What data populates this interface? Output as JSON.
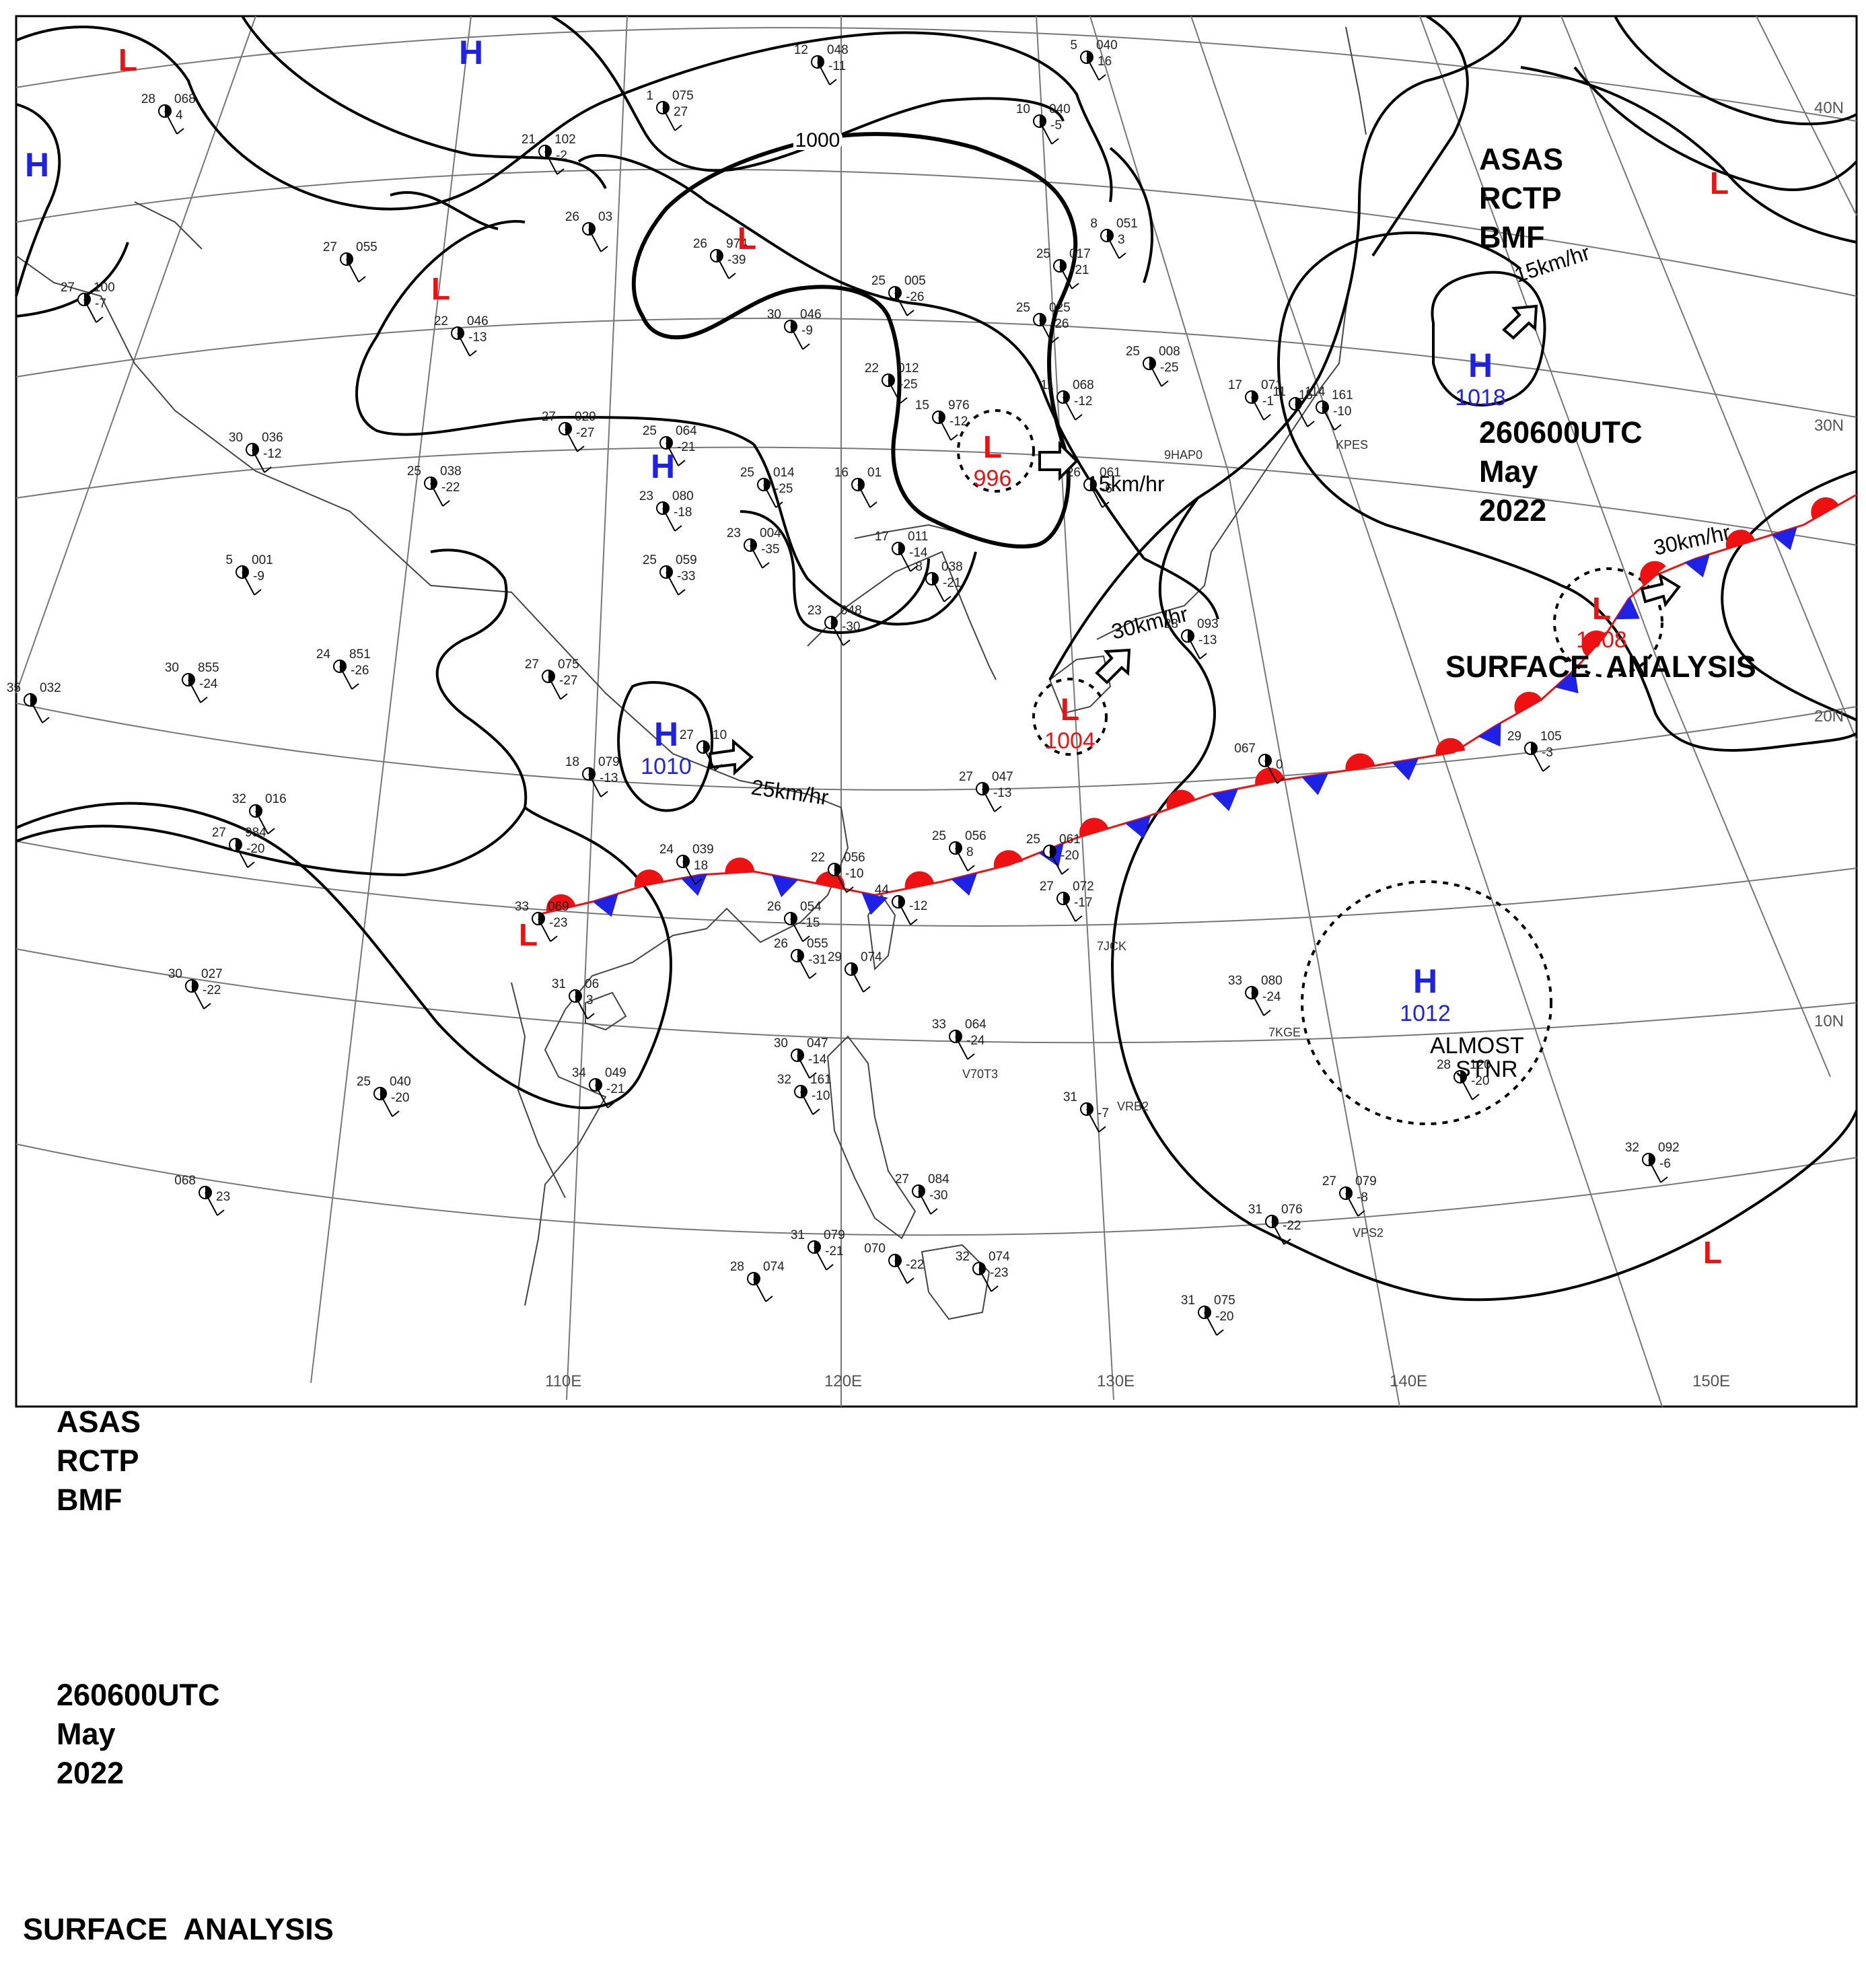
{
  "header": {
    "line1": [
      "ASAS",
      "RCTP",
      "BMF"
    ],
    "line2": [
      "260600UTC",
      "May",
      "2022"
    ],
    "line3": "SURFACE  ANALYSIS"
  },
  "colors": {
    "high": "#1e22e6",
    "low": "#ee1111",
    "isobar": "#000000",
    "grid": "#707070",
    "coast": "#505050"
  },
  "lon_labels": [
    "110E",
    "120E",
    "130E",
    "140E",
    "150E"
  ],
  "lat_labels": [
    "40N",
    "30N",
    "20N",
    "10N"
  ],
  "isobar_label": "1000",
  "pressure_systems": [
    {
      "type": "L",
      "value": ""
    },
    {
      "type": "H",
      "value": ""
    },
    {
      "type": "H",
      "value": ""
    },
    {
      "type": "L",
      "value": ""
    },
    {
      "type": "L",
      "value": ""
    },
    {
      "type": "H",
      "value": ""
    },
    {
      "type": "L",
      "value": "996"
    },
    {
      "type": "H",
      "value": "1010"
    },
    {
      "type": "L",
      "value": "1004"
    },
    {
      "type": "L",
      "value": ""
    },
    {
      "type": "H",
      "value": "1018"
    },
    {
      "type": "L",
      "value": "1008"
    },
    {
      "type": "L",
      "value": ""
    },
    {
      "type": "H",
      "value": "1012"
    },
    {
      "type": "L",
      "value": ""
    }
  ],
  "motion_labels": [
    "15km/hr",
    "15km/hr",
    "30km/hr",
    "30km/hr",
    "25km/hr"
  ],
  "almost_stnr": [
    "ALMOST",
    "STNR"
  ],
  "station_plots": [
    {
      "t": "12",
      "p": "048",
      "d": "-11"
    },
    {
      "t": "5",
      "p": "040",
      "d": "16"
    },
    {
      "t": "28",
      "p": "068",
      "d": "4"
    },
    {
      "t": "1",
      "p": "075",
      "d": "27"
    },
    {
      "t": "21",
      "p": "102",
      "d": "-2"
    },
    {
      "t": "10",
      "p": "040",
      "d": "-5"
    },
    {
      "t": "26",
      "p": "03",
      "d": ""
    },
    {
      "t": "26",
      "p": "974",
      "d": "-39"
    },
    {
      "t": "27",
      "p": "055",
      "d": ""
    },
    {
      "t": "25",
      "p": "017",
      "d": "-21"
    },
    {
      "t": "8",
      "p": "051",
      "d": "3"
    },
    {
      "t": "25",
      "p": "005",
      "d": "-26"
    },
    {
      "t": "27",
      "p": "100",
      "d": "-7"
    },
    {
      "t": "22",
      "p": "046",
      "d": "-13"
    },
    {
      "t": "30",
      "p": "046",
      "d": "-9"
    },
    {
      "t": "25",
      "p": "025",
      "d": "-26"
    },
    {
      "t": "25",
      "p": "008",
      "d": "-25"
    },
    {
      "t": "22",
      "p": "012",
      "d": "-25"
    },
    {
      "t": "17",
      "p": "071",
      "d": "-1"
    },
    {
      "t": "15",
      "p": "976",
      "d": "-12"
    },
    {
      "t": "11",
      "p": "068",
      "d": "-12"
    },
    {
      "t": "11",
      "p": "114",
      "d": ""
    },
    {
      "t": "15",
      "p": "161",
      "d": "-10"
    },
    {
      "t": "27",
      "p": "029",
      "d": "-27"
    },
    {
      "t": "25",
      "p": "064",
      "d": "-21"
    },
    {
      "t": "30",
      "p": "036",
      "d": "-12"
    },
    {
      "t": "25",
      "p": "038",
      "d": "-22"
    },
    {
      "t": "23",
      "p": "080",
      "d": "-18"
    },
    {
      "t": "25",
      "p": "014",
      "d": "-25"
    },
    {
      "t": "16",
      "p": "01",
      "d": ""
    },
    {
      "t": "26",
      "p": "061",
      "d": "-6"
    },
    {
      "t": "23",
      "p": "004",
      "d": "-35"
    },
    {
      "t": "5",
      "p": "001",
      "d": "-9"
    },
    {
      "t": "25",
      "p": "059",
      "d": "-33"
    },
    {
      "t": "17",
      "p": "011",
      "d": "-14"
    },
    {
      "t": "8",
      "p": "038",
      "d": "-21"
    },
    {
      "t": "23",
      "p": "048",
      "d": "-30"
    },
    {
      "t": "23",
      "p": "093",
      "d": "-13"
    },
    {
      "t": "24",
      "p": "851",
      "d": "-26"
    },
    {
      "t": "30",
      "p": "855",
      "d": "-24"
    },
    {
      "t": "27",
      "p": "075",
      "d": "-27"
    },
    {
      "t": "35",
      "p": "032",
      "d": ""
    },
    {
      "t": "27",
      "p": "10",
      "d": ""
    },
    {
      "t": "18",
      "p": "079",
      "d": "-13"
    },
    {
      "t": "27",
      "p": "047",
      "d": "-13"
    },
    {
      "t": "29",
      "p": "105",
      "d": "-3"
    },
    {
      "t": "067",
      "p": "",
      "d": "0"
    },
    {
      "t": "32",
      "p": "016",
      "d": ""
    },
    {
      "t": "27",
      "p": "984",
      "d": "-20"
    },
    {
      "t": "24",
      "p": "039",
      "d": "18"
    },
    {
      "t": "22",
      "p": "056",
      "d": "-10"
    },
    {
      "t": "25",
      "p": "056",
      "d": "8"
    },
    {
      "t": "25",
      "p": "061",
      "d": "-20"
    },
    {
      "t": "33",
      "p": "069",
      "d": "-23"
    },
    {
      "t": "26",
      "p": "054",
      "d": "-15"
    },
    {
      "t": "44",
      "p": "",
      "d": "-12"
    },
    {
      "t": "27",
      "p": "072",
      "d": "-17"
    },
    {
      "t": "26",
      "p": "055",
      "d": "-31"
    },
    {
      "t": "29",
      "p": "074",
      "d": ""
    },
    {
      "t": "30",
      "p": "027",
      "d": "-22"
    },
    {
      "t": "31",
      "p": "06",
      "d": "3"
    },
    {
      "t": "33",
      "p": "080",
      "d": "-24"
    },
    {
      "t": "33",
      "p": "064",
      "d": "-24"
    },
    {
      "t": "30",
      "p": "047",
      "d": "-14"
    },
    {
      "t": "34",
      "p": "049",
      "d": "-21"
    },
    {
      "t": "25",
      "p": "040",
      "d": "-20"
    },
    {
      "t": "32",
      "p": "161",
      "d": "-10"
    },
    {
      "t": "31",
      "p": "",
      "d": "-7"
    },
    {
      "t": "28",
      "p": "120",
      "d": "-20"
    },
    {
      "t": "27",
      "p": "079",
      "d": "-8"
    },
    {
      "t": "32",
      "p": "092",
      "d": "-6"
    },
    {
      "t": "068",
      "p": "",
      "d": "23"
    },
    {
      "t": "27",
      "p": "084",
      "d": "-30"
    },
    {
      "t": "31",
      "p": "076",
      "d": "-22"
    },
    {
      "t": "31",
      "p": "079",
      "d": "-21"
    },
    {
      "t": "070",
      "p": "",
      "d": "-22"
    },
    {
      "t": "32",
      "p": "074",
      "d": "-23"
    },
    {
      "t": "28",
      "p": "074",
      "d": ""
    },
    {
      "t": "31",
      "p": "075",
      "d": "-20"
    }
  ],
  "station_ids": [
    "KPES",
    "9HAP0",
    "7JCK",
    "7KGE",
    "V70T3",
    "VRB2",
    "VPS2"
  ]
}
